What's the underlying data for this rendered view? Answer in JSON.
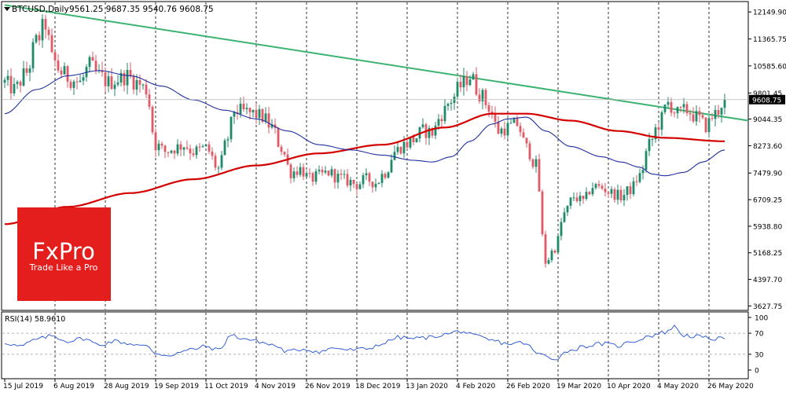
{
  "header": {
    "symbol": "BTCUSD,Daily",
    "ohlc": "9561.25 9687.35 9540.76 9608.75"
  },
  "branding": {
    "logo_text": "FxPro",
    "tagline": "Trade Like a Pro",
    "color": "#e41d1d"
  },
  "chart_data": [
    {
      "type": "candlestick",
      "title": "BTCUSD,Daily",
      "y_ticks": [
        "12149.90",
        "11365.75",
        "10585.60",
        "9801.45",
        "9044.35",
        "8273.60",
        "7479.90",
        "6709.25",
        "5938.80",
        "5168.25",
        "4397.70",
        "3627.75"
      ],
      "y_tick_values": [
        12149.9,
        11365.75,
        10585.6,
        9801.45,
        9044.35,
        8273.6,
        7479.9,
        6709.25,
        5938.8,
        5168.25,
        4397.7,
        3627.75
      ],
      "ylim": [
        3500,
        12450
      ],
      "last_price": "9608.75",
      "last_price_value": 9608.75,
      "x_labels": [
        "15 Jul 2019",
        "6 Aug 2019",
        "28 Aug 2019",
        "19 Sep 2019",
        "11 Oct 2019",
        "4 Nov 2019",
        "26 Nov 2019",
        "18 Dec 2019",
        "13 Jan 2020",
        "4 Feb 2020",
        "26 Feb 2020",
        "19 Mar 2020",
        "10 Apr 2020",
        "4 May 2020",
        "26 May 2020"
      ],
      "x_label_index": [
        0,
        16,
        32,
        48,
        64,
        80,
        96,
        112,
        128,
        144,
        160,
        176,
        192,
        208,
        224
      ],
      "dashed_vlines_index": [
        16,
        32,
        48,
        64,
        80,
        96,
        112,
        128,
        144,
        160,
        176,
        192,
        208,
        224
      ],
      "colors": {
        "up": "#1f8a6a",
        "down": "#e05a66",
        "ma_fast": "#1f2fa0",
        "ma_slow": "#d40000",
        "trendline": "#3cb371"
      },
      "trendline": {
        "from": {
          "index": 0,
          "price": 12350
        },
        "to": {
          "index": 229,
          "price": 9000
        }
      },
      "anchors": [
        [
          0,
          10100
        ],
        [
          3,
          9900
        ],
        [
          7,
          10400
        ],
        [
          10,
          11300
        ],
        [
          13,
          11800
        ],
        [
          15,
          10800
        ],
        [
          18,
          10400
        ],
        [
          21,
          10200
        ],
        [
          24,
          10100
        ],
        [
          27,
          10600
        ],
        [
          30,
          10300
        ],
        [
          33,
          10100
        ],
        [
          36,
          10200
        ],
        [
          39,
          10300
        ],
        [
          42,
          10100
        ],
        [
          45,
          9900
        ],
        [
          48,
          8300
        ],
        [
          51,
          8100
        ],
        [
          54,
          8200
        ],
        [
          57,
          8300
        ],
        [
          60,
          8100
        ],
        [
          64,
          8200
        ],
        [
          68,
          7600
        ],
        [
          71,
          8500
        ],
        [
          73,
          9300
        ],
        [
          76,
          9250
        ],
        [
          79,
          9200
        ],
        [
          82,
          9100
        ],
        [
          85,
          8800
        ],
        [
          88,
          8200
        ],
        [
          91,
          7500
        ],
        [
          94,
          7600
        ],
        [
          97,
          7300
        ],
        [
          100,
          7400
        ],
        [
          103,
          7500
        ],
        [
          106,
          7350
        ],
        [
          109,
          7250
        ],
        [
          112,
          7150
        ],
        [
          115,
          7300
        ],
        [
          118,
          7200
        ],
        [
          121,
          7500
        ],
        [
          124,
          8100
        ],
        [
          127,
          8300
        ],
        [
          130,
          8450
        ],
        [
          133,
          8700
        ],
        [
          136,
          8650
        ],
        [
          139,
          9200
        ],
        [
          142,
          9600
        ],
        [
          145,
          10000
        ],
        [
          148,
          10300
        ],
        [
          151,
          9800
        ],
        [
          154,
          9400
        ],
        [
          157,
          8700
        ],
        [
          160,
          8800
        ],
        [
          163,
          8900
        ],
        [
          166,
          8200
        ],
        [
          169,
          7700
        ],
        [
          172,
          4900
        ],
        [
          175,
          5300
        ],
        [
          178,
          6300
        ],
        [
          181,
          6800
        ],
        [
          184,
          6650
        ],
        [
          187,
          7100
        ],
        [
          190,
          7050
        ],
        [
          193,
          6900
        ],
        [
          196,
          6800
        ],
        [
          199,
          7000
        ],
        [
          202,
          7400
        ],
        [
          205,
          8300
        ],
        [
          208,
          8900
        ],
        [
          211,
          9500
        ],
        [
          214,
          9200
        ],
        [
          217,
          9300
        ],
        [
          220,
          9100
        ],
        [
          223,
          8850
        ],
        [
          226,
          9200
        ],
        [
          229,
          9608.75
        ]
      ],
      "ma_fast_anchors": [
        [
          0,
          9200
        ],
        [
          10,
          9900
        ],
        [
          20,
          10300
        ],
        [
          30,
          10450
        ],
        [
          40,
          10300
        ],
        [
          50,
          10000
        ],
        [
          60,
          9600
        ],
        [
          70,
          9300
        ],
        [
          80,
          9050
        ],
        [
          90,
          8700
        ],
        [
          100,
          8300
        ],
        [
          110,
          8150
        ],
        [
          120,
          8000
        ],
        [
          130,
          7850
        ],
        [
          136,
          7800
        ],
        [
          142,
          7950
        ],
        [
          148,
          8400
        ],
        [
          155,
          8900
        ],
        [
          160,
          9050
        ],
        [
          166,
          9100
        ],
        [
          172,
          8700
        ],
        [
          180,
          8250
        ],
        [
          190,
          7950
        ],
        [
          196,
          7800
        ],
        [
          202,
          7650
        ],
        [
          206,
          7450
        ],
        [
          210,
          7400
        ],
        [
          216,
          7500
        ],
        [
          222,
          7800
        ],
        [
          229,
          8150
        ]
      ],
      "ma_slow_anchors": [
        [
          0,
          6000
        ],
        [
          20,
          6500
        ],
        [
          40,
          6900
        ],
        [
          60,
          7300
        ],
        [
          80,
          7700
        ],
        [
          100,
          8050
        ],
        [
          120,
          8300
        ],
        [
          140,
          8800
        ],
        [
          155,
          9200
        ],
        [
          166,
          9200
        ],
        [
          180,
          9000
        ],
        [
          195,
          8700
        ],
        [
          210,
          8500
        ],
        [
          229,
          8400
        ]
      ]
    },
    {
      "type": "line",
      "title": "RSI(14) 58.9610",
      "y_ticks": [
        "100",
        "70",
        "30",
        "0"
      ],
      "y_tick_values": [
        100,
        70,
        30,
        0
      ],
      "levels": [
        70,
        30
      ],
      "ylim": [
        0,
        100
      ],
      "color": "#1f4fd4",
      "anchors": [
        [
          0,
          52
        ],
        [
          5,
          45
        ],
        [
          10,
          58
        ],
        [
          15,
          65
        ],
        [
          20,
          55
        ],
        [
          25,
          60
        ],
        [
          30,
          48
        ],
        [
          35,
          55
        ],
        [
          40,
          50
        ],
        [
          45,
          45
        ],
        [
          48,
          32
        ],
        [
          52,
          28
        ],
        [
          56,
          34
        ],
        [
          60,
          40
        ],
        [
          64,
          45
        ],
        [
          68,
          38
        ],
        [
          72,
          66
        ],
        [
          76,
          60
        ],
        [
          80,
          55
        ],
        [
          85,
          48
        ],
        [
          90,
          35
        ],
        [
          95,
          40
        ],
        [
          100,
          35
        ],
        [
          105,
          42
        ],
        [
          110,
          38
        ],
        [
          115,
          40
        ],
        [
          120,
          50
        ],
        [
          125,
          62
        ],
        [
          130,
          60
        ],
        [
          135,
          62
        ],
        [
          140,
          68
        ],
        [
          145,
          74
        ],
        [
          150,
          64
        ],
        [
          155,
          56
        ],
        [
          160,
          50
        ],
        [
          165,
          52
        ],
        [
          170,
          30
        ],
        [
          175,
          22
        ],
        [
          180,
          38
        ],
        [
          185,
          46
        ],
        [
          190,
          50
        ],
        [
          195,
          46
        ],
        [
          200,
          55
        ],
        [
          205,
          65
        ],
        [
          210,
          72
        ],
        [
          213,
          82
        ],
        [
          216,
          66
        ],
        [
          220,
          64
        ],
        [
          224,
          60
        ],
        [
          229,
          58.96
        ]
      ]
    }
  ]
}
